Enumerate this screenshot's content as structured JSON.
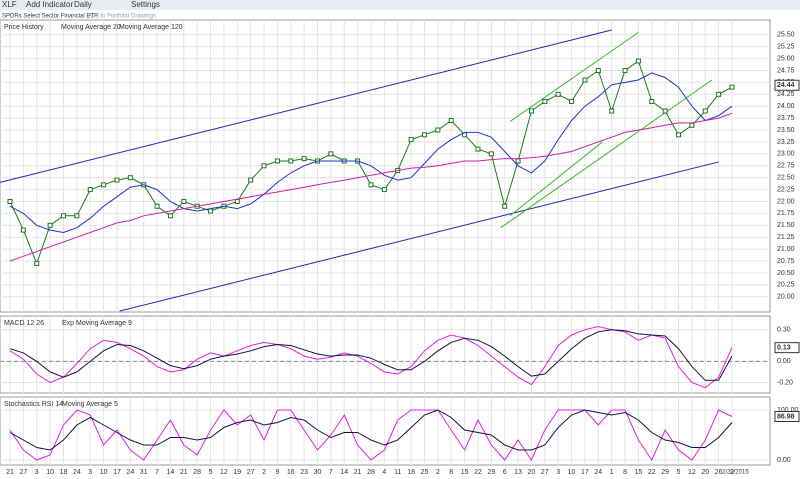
{
  "toolbar": {
    "ticker": "XLF",
    "buttons": [
      "Add Indicator",
      "Daily",
      "Settings"
    ],
    "name": "SPDRs Select Sector Financial ETF",
    "links": [
      "Add to Portfolio",
      "Drawings"
    ]
  },
  "chart_data": [
    {
      "type": "price",
      "legend": [
        "Price History",
        "Moving Average 20",
        "Moving Average 120"
      ],
      "categories": [
        "21",
        "27",
        "3",
        "10",
        "18",
        "24",
        "3",
        "10",
        "17",
        "24",
        "31",
        "7",
        "14",
        "21",
        "28",
        "5",
        "12",
        "19",
        "27",
        "2",
        "9",
        "16",
        "23",
        "30",
        "7",
        "14",
        "21",
        "28",
        "4",
        "11",
        "18",
        "25",
        "2",
        "8",
        "15",
        "22",
        "29",
        "6",
        "13",
        "20",
        "27",
        "3",
        "10",
        "17",
        "24",
        "1",
        "8",
        "15",
        "22",
        "29",
        "5",
        "12",
        "20",
        "26",
        "2"
      ],
      "end_date": "2/20/2015",
      "series": [
        {
          "name": "Price History",
          "color": "#1a7a1a",
          "values": [
            22.0,
            21.4,
            20.7,
            21.5,
            21.7,
            21.7,
            22.25,
            22.35,
            22.45,
            22.5,
            22.35,
            21.9,
            21.7,
            22.0,
            21.9,
            21.8,
            21.9,
            22.0,
            22.45,
            22.75,
            22.85,
            22.85,
            22.9,
            22.85,
            23.0,
            22.85,
            22.85,
            22.35,
            22.25,
            22.65,
            23.3,
            23.4,
            23.5,
            23.7,
            23.4,
            23.1,
            23.0,
            21.9,
            22.85,
            23.9,
            24.1,
            24.25,
            24.1,
            24.55,
            24.75,
            23.9,
            24.75,
            24.95,
            24.1,
            23.9,
            23.4,
            23.6,
            23.9,
            24.25,
            24.4
          ]
        },
        {
          "name": "Moving Average 20",
          "color": "#2233cc",
          "values": [
            21.9,
            21.75,
            21.5,
            21.4,
            21.35,
            21.45,
            21.65,
            21.9,
            22.1,
            22.3,
            22.35,
            22.25,
            22.0,
            21.85,
            21.8,
            21.85,
            21.9,
            21.85,
            21.95,
            22.15,
            22.4,
            22.6,
            22.75,
            22.85,
            22.85,
            22.85,
            22.85,
            22.75,
            22.55,
            22.45,
            22.5,
            22.8,
            23.1,
            23.3,
            23.45,
            23.45,
            23.35,
            23.05,
            22.75,
            22.6,
            22.85,
            23.3,
            23.7,
            24.0,
            24.2,
            24.45,
            24.5,
            24.55,
            24.7,
            24.6,
            24.4,
            24.0,
            23.7,
            23.8,
            24.0
          ]
        },
        {
          "name": "Moving Average 120",
          "color": "#cc22aa",
          "values": [
            20.75,
            20.85,
            20.95,
            21.05,
            21.15,
            21.25,
            21.35,
            21.45,
            21.55,
            21.6,
            21.7,
            21.75,
            21.8,
            21.85,
            21.9,
            21.95,
            22.0,
            22.05,
            22.1,
            22.15,
            22.2,
            22.25,
            22.3,
            22.35,
            22.4,
            22.45,
            22.5,
            22.55,
            22.6,
            22.65,
            22.7,
            22.72,
            22.75,
            22.8,
            22.85,
            22.85,
            22.88,
            22.9,
            22.9,
            22.92,
            22.95,
            23.0,
            23.05,
            23.15,
            23.25,
            23.35,
            23.45,
            23.5,
            23.55,
            23.6,
            23.65,
            23.65,
            23.7,
            23.75,
            23.85
          ]
        }
      ],
      "trendlines": [
        {
          "color": "#2222bb",
          "x": [
            -0.75,
            45
          ],
          "y": [
            22.4,
            25.6
          ]
        },
        {
          "color": "#2222bb",
          "x": [
            8.2,
            53
          ],
          "y": [
            19.7,
            22.83
          ]
        },
        {
          "color": "#33bb22",
          "x": [
            37.4,
            47
          ],
          "y": [
            23.68,
            25.55
          ]
        },
        {
          "color": "#33bb22",
          "x": [
            36.7,
            52.5
          ],
          "y": [
            21.45,
            24.55
          ]
        },
        {
          "color": "#33bb22",
          "x": [
            37.4,
            44.3
          ],
          "y": [
            21.7,
            23.25
          ]
        }
      ],
      "ylim": [
        19.68,
        25.81
      ],
      "yticks": [
        {
          "value": 20,
          "label": "20.00"
        },
        {
          "value": 20.25,
          "label": "20.25"
        },
        {
          "value": 20.5,
          "label": "20.50"
        },
        {
          "value": 20.75,
          "label": "20.75"
        },
        {
          "value": 21,
          "label": "21.00"
        },
        {
          "value": 21.25,
          "label": "21.25"
        },
        {
          "value": 21.5,
          "label": "21.50"
        },
        {
          "value": 21.75,
          "label": "21.75"
        },
        {
          "value": 22,
          "label": "22.00"
        },
        {
          "value": 22.25,
          "label": "22.25"
        },
        {
          "value": 22.5,
          "label": "22.50"
        },
        {
          "value": 22.75,
          "label": "22.75"
        },
        {
          "value": 23,
          "label": "23.00"
        },
        {
          "value": 23.25,
          "label": "23.25"
        },
        {
          "value": 23.5,
          "label": "23.50"
        },
        {
          "value": 23.75,
          "label": "23.75"
        },
        {
          "value": 24,
          "label": "24.00"
        },
        {
          "value": 24.25,
          "label": "24.25"
        },
        {
          "value": 24.5,
          "label": "24.50"
        },
        {
          "value": 24.75,
          "label": "24.75"
        },
        {
          "value": 25,
          "label": "25.00"
        },
        {
          "value": 25.25,
          "label": "25.25"
        },
        {
          "value": 25.5,
          "label": "25.50"
        }
      ],
      "last": {
        "value": 24.44,
        "label": "24.44"
      }
    },
    {
      "type": "oscillator",
      "legend": [
        "MACD 12 26",
        "Exp Moving Average 9"
      ],
      "series": [
        {
          "name": "MACD 12 26",
          "color": "#dd22dd",
          "values": [
            0.1,
            0.02,
            -0.12,
            -0.2,
            -0.15,
            -0.02,
            0.12,
            0.2,
            0.18,
            0.12,
            0.05,
            -0.05,
            -0.1,
            -0.08,
            0.02,
            0.08,
            0.05,
            0.1,
            0.15,
            0.18,
            0.16,
            0.12,
            0.05,
            0.02,
            0.04,
            0.08,
            0.05,
            -0.02,
            -0.1,
            -0.12,
            -0.05,
            0.1,
            0.2,
            0.25,
            0.22,
            0.15,
            0.05,
            -0.05,
            -0.15,
            -0.22,
            -0.05,
            0.15,
            0.25,
            0.3,
            0.33,
            0.3,
            0.28,
            0.2,
            0.25,
            0.22,
            -0.05,
            -0.2,
            -0.25,
            -0.15,
            0.13
          ]
        },
        {
          "name": "Exp Moving Average 9",
          "color": "#111144",
          "values": [
            0.12,
            0.08,
            0.0,
            -0.1,
            -0.15,
            -0.1,
            0.0,
            0.1,
            0.16,
            0.15,
            0.1,
            0.03,
            -0.04,
            -0.07,
            -0.04,
            0.02,
            0.05,
            0.07,
            0.1,
            0.14,
            0.16,
            0.15,
            0.11,
            0.07,
            0.05,
            0.06,
            0.06,
            0.03,
            -0.03,
            -0.08,
            -0.08,
            0.0,
            0.1,
            0.18,
            0.22,
            0.2,
            0.14,
            0.05,
            -0.05,
            -0.14,
            -0.12,
            0.0,
            0.12,
            0.22,
            0.28,
            0.3,
            0.29,
            0.26,
            0.25,
            0.24,
            0.12,
            -0.05,
            -0.18,
            -0.18,
            0.05
          ]
        }
      ],
      "ylim": [
        -0.3,
        0.43
      ],
      "yticks": [
        {
          "value": 0.3,
          "label": "0.30"
        },
        {
          "value": 0,
          "label": "0.00"
        },
        {
          "value": -0.2,
          "label": "-0.20"
        }
      ],
      "zero_line": 0,
      "last": {
        "value": 0.13,
        "label": "0.13"
      }
    },
    {
      "type": "oscillator",
      "legend": [
        "Stochastics RSI 14",
        "Moving Average 5"
      ],
      "series": [
        {
          "name": "Stochastics RSI 14",
          "color": "#dd22dd",
          "values": [
            60,
            20,
            0,
            10,
            70,
            100,
            90,
            30,
            60,
            20,
            0,
            40,
            80,
            30,
            10,
            60,
            100,
            70,
            90,
            40,
            100,
            100,
            60,
            20,
            50,
            90,
            30,
            0,
            20,
            80,
            100,
            100,
            100,
            60,
            20,
            80,
            30,
            0,
            40,
            0,
            60,
            100,
            100,
            100,
            70,
            100,
            100,
            40,
            0,
            60,
            20,
            0,
            40,
            100,
            87
          ]
        },
        {
          "name": "Moving Average 5",
          "color": "#111144",
          "values": [
            55,
            40,
            25,
            20,
            40,
            70,
            85,
            70,
            55,
            40,
            30,
            30,
            45,
            45,
            40,
            45,
            65,
            75,
            80,
            70,
            75,
            85,
            80,
            60,
            45,
            55,
            55,
            40,
            30,
            40,
            65,
            90,
            100,
            85,
            60,
            55,
            50,
            30,
            20,
            20,
            30,
            65,
            90,
            100,
            95,
            90,
            95,
            80,
            55,
            40,
            35,
            25,
            25,
            45,
            75
          ]
        }
      ],
      "ylim": [
        -10,
        126
      ],
      "yticks": [
        {
          "value": 100,
          "label": "100.00"
        },
        {
          "value": 0,
          "label": "0.00"
        }
      ],
      "last": {
        "value": 86.98,
        "label": "86.98"
      }
    }
  ]
}
